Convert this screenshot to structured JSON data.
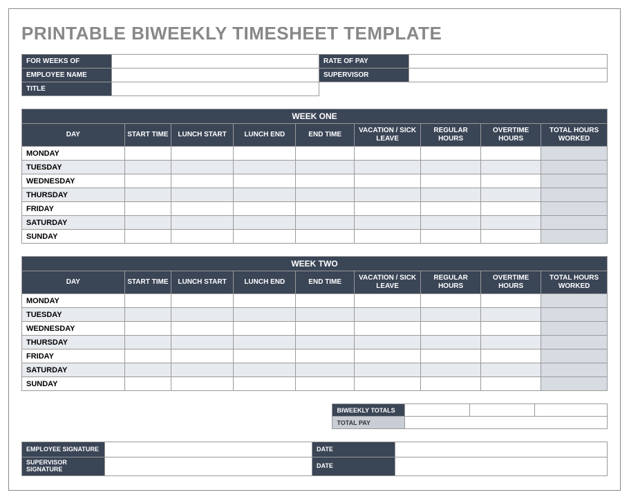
{
  "colors": {
    "header_bg": "#3a4556",
    "header_text": "#ffffff",
    "row_alt": "#e7eaef",
    "row_norm": "#ffffff",
    "total_col_bg": "#d7dbe2",
    "title_gray": "#888888",
    "gray_label": "#c9cdd5",
    "border": "#999999"
  },
  "title": "PRINTABLE BIWEEKLY TIMESHEET TEMPLATE",
  "info": {
    "for_weeks_of_label": "FOR WEEKS OF",
    "for_weeks_of": "",
    "employee_name_label": "EMPLOYEE NAME",
    "employee_name": "",
    "title_label": "TITLE",
    "title_value": "",
    "rate_of_pay_label": "RATE OF PAY",
    "rate_of_pay": "",
    "supervisor_label": "SUPERVISOR",
    "supervisor": ""
  },
  "columns": {
    "day": "DAY",
    "start_time": "START TIME",
    "lunch_start": "LUNCH START",
    "lunch_end": "LUNCH END",
    "end_time": "END TIME",
    "vacation": "VACATION / SICK LEAVE",
    "regular": "REGULAR HOURS",
    "overtime": "OVERTIME HOURS",
    "total": "TOTAL HOURS WORKED"
  },
  "week_one": {
    "title": "WEEK ONE",
    "days": [
      "MONDAY",
      "TUESDAY",
      "WEDNESDAY",
      "THURSDAY",
      "FRIDAY",
      "SATURDAY",
      "SUNDAY"
    ]
  },
  "week_two": {
    "title": "WEEK TWO",
    "days": [
      "MONDAY",
      "TUESDAY",
      "WEDNESDAY",
      "THURSDAY",
      "FRIDAY",
      "SATURDAY",
      "SUNDAY"
    ]
  },
  "totals": {
    "biweekly_label": "BIWEEKLY TOTALS",
    "biweekly_reg": "",
    "biweekly_ot": "",
    "biweekly_total": "",
    "total_pay_label": "TOTAL PAY",
    "total_pay": ""
  },
  "signatures": {
    "employee_sig_label": "EMPLOYEE SIGNATURE",
    "employee_sig": "",
    "employee_date_label": "DATE",
    "employee_date": "",
    "supervisor_sig_label": "SUPERVISOR SIGNATURE",
    "supervisor_sig": "",
    "supervisor_date_label": "DATE",
    "supervisor_date": ""
  }
}
